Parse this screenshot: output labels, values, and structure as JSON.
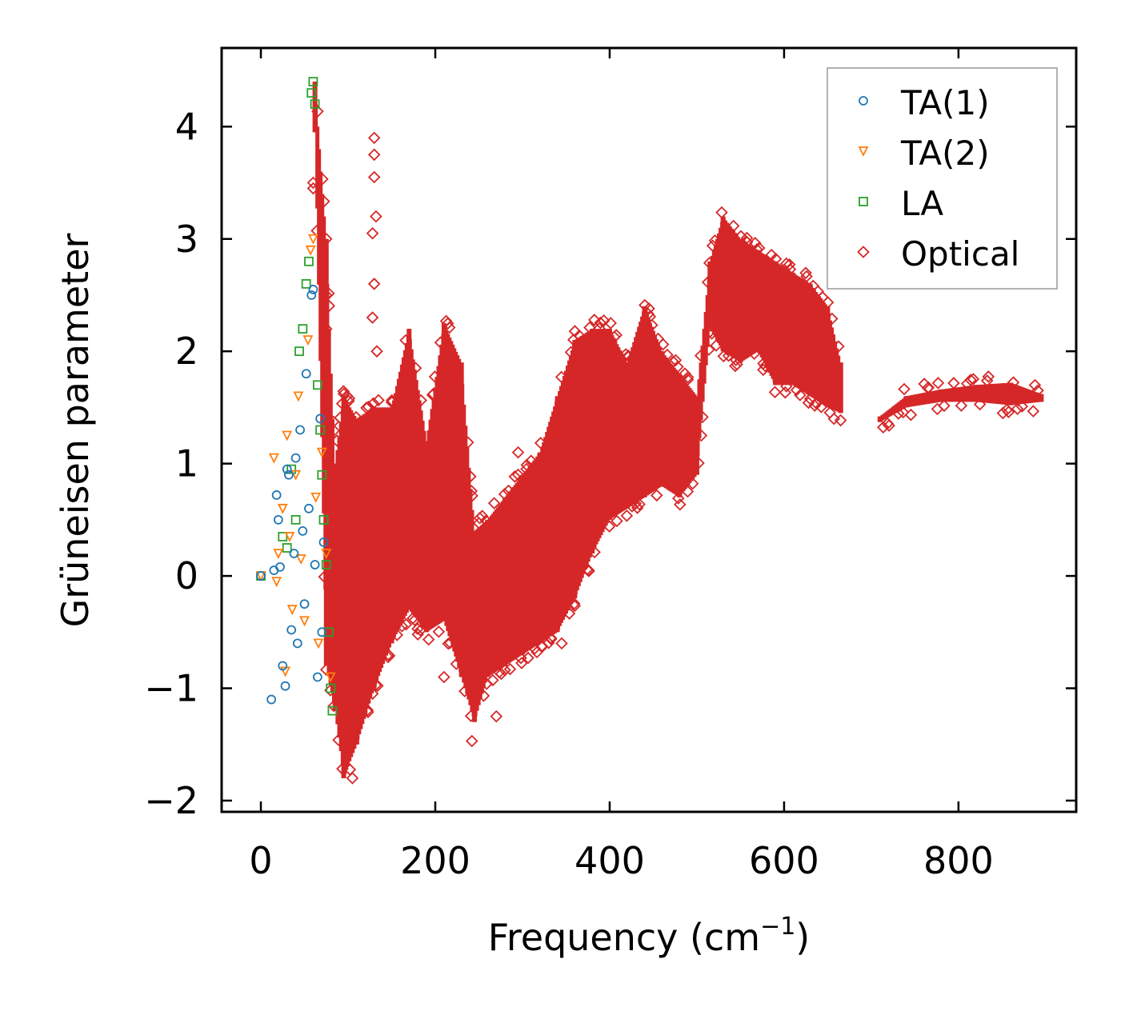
{
  "chart_data": {
    "type": "scatter",
    "title": "",
    "xlabel_main": "Frequency (cm",
    "xlabel_sup": "−1",
    "xlabel_close": ")",
    "ylabel": "Grüneisen parameter",
    "xlim": [
      -45,
      935
    ],
    "ylim": [
      -2.1,
      4.7
    ],
    "xticks": [
      0,
      200,
      400,
      600,
      800
    ],
    "yticks": [
      -2,
      -1,
      0,
      1,
      2,
      3,
      4
    ],
    "xtick_labels": [
      "0",
      "200",
      "400",
      "600",
      "800"
    ],
    "ytick_labels": [
      "−2",
      "−1",
      "0",
      "1",
      "2",
      "3",
      "4"
    ],
    "grid": false,
    "legend_position": "top-right",
    "series": [
      {
        "name": "TA(1)",
        "marker": "circle",
        "color": "#1f77b4",
        "points": [
          [
            0,
            0
          ],
          [
            12,
            -1.1
          ],
          [
            15,
            0.05
          ],
          [
            18,
            0.72
          ],
          [
            20,
            0.5
          ],
          [
            22,
            0.08
          ],
          [
            25,
            -0.8
          ],
          [
            28,
            -0.98
          ],
          [
            30,
            0.95
          ],
          [
            32,
            0.9
          ],
          [
            35,
            -0.48
          ],
          [
            38,
            0.2
          ],
          [
            40,
            1.05
          ],
          [
            42,
            -0.6
          ],
          [
            45,
            1.3
          ],
          [
            48,
            0.4
          ],
          [
            50,
            -0.25
          ],
          [
            52,
            1.8
          ],
          [
            55,
            0.6
          ],
          [
            58,
            2.5
          ],
          [
            60,
            2.55
          ],
          [
            62,
            0.1
          ],
          [
            65,
            -0.9
          ],
          [
            68,
            1.4
          ],
          [
            70,
            -0.5
          ],
          [
            72,
            0.3
          ]
        ]
      },
      {
        "name": "TA(2)",
        "marker": "triangle-down",
        "color": "#ff7f0e",
        "points": [
          [
            0,
            0
          ],
          [
            15,
            1.05
          ],
          [
            18,
            -0.05
          ],
          [
            20,
            0.2
          ],
          [
            25,
            0.6
          ],
          [
            28,
            -0.85
          ],
          [
            30,
            1.25
          ],
          [
            33,
            0.35
          ],
          [
            36,
            -0.3
          ],
          [
            40,
            0.9
          ],
          [
            43,
            1.6
          ],
          [
            46,
            0.15
          ],
          [
            50,
            -0.4
          ],
          [
            54,
            2.1
          ],
          [
            57,
            2.9
          ],
          [
            60,
            3.0
          ],
          [
            63,
            0.7
          ],
          [
            66,
            -0.6
          ],
          [
            70,
            1.1
          ],
          [
            75,
            0.2
          ],
          [
            80,
            -0.9
          ]
        ]
      },
      {
        "name": "LA",
        "marker": "square",
        "color": "#2ca02c",
        "points": [
          [
            0,
            0
          ],
          [
            25,
            0.35
          ],
          [
            30,
            0.25
          ],
          [
            35,
            0.95
          ],
          [
            40,
            0.5
          ],
          [
            44,
            2.0
          ],
          [
            48,
            2.2
          ],
          [
            52,
            2.6
          ],
          [
            55,
            2.8
          ],
          [
            58,
            4.3
          ],
          [
            60,
            4.4
          ],
          [
            62,
            4.2
          ],
          [
            65,
            1.7
          ],
          [
            68,
            1.3
          ],
          [
            70,
            0.9
          ],
          [
            72,
            0.5
          ],
          [
            75,
            0.1
          ],
          [
            78,
            -0.5
          ],
          [
            80,
            -1.0
          ],
          [
            82,
            -1.2
          ]
        ]
      },
      {
        "name": "Optical",
        "marker": "diamond",
        "color": "#d62728",
        "bands": [
          {
            "x": 62,
            "y_low": 3.95,
            "y_high": 4.4
          },
          {
            "x": 75,
            "y_low": -0.8,
            "y_high": 3.0
          },
          {
            "x": 85,
            "y_low": -1.2,
            "y_high": 1.0
          },
          {
            "x": 95,
            "y_low": -1.8,
            "y_high": 1.6
          },
          {
            "x": 110,
            "y_low": -1.5,
            "y_high": 1.4
          },
          {
            "x": 130,
            "y_low": -1.0,
            "y_high": 1.5
          },
          {
            "x": 150,
            "y_low": -0.6,
            "y_high": 1.5
          },
          {
            "x": 170,
            "y_low": -0.3,
            "y_high": 2.2
          },
          {
            "x": 190,
            "y_low": -0.5,
            "y_high": 1.2
          },
          {
            "x": 210,
            "y_low": -0.4,
            "y_high": 2.25
          },
          {
            "x": 230,
            "y_low": -0.9,
            "y_high": 1.9
          },
          {
            "x": 245,
            "y_low": -1.3,
            "y_high": 0.4
          },
          {
            "x": 260,
            "y_low": -0.9,
            "y_high": 0.5
          },
          {
            "x": 280,
            "y_low": -0.8,
            "y_high": 0.7
          },
          {
            "x": 300,
            "y_low": -0.7,
            "y_high": 0.9
          },
          {
            "x": 320,
            "y_low": -0.6,
            "y_high": 1.1
          },
          {
            "x": 340,
            "y_low": -0.5,
            "y_high": 1.6
          },
          {
            "x": 360,
            "y_low": -0.2,
            "y_high": 2.1
          },
          {
            "x": 380,
            "y_low": 0.2,
            "y_high": 2.2
          },
          {
            "x": 400,
            "y_low": 0.5,
            "y_high": 2.2
          },
          {
            "x": 420,
            "y_low": 0.6,
            "y_high": 1.9
          },
          {
            "x": 440,
            "y_low": 0.7,
            "y_high": 2.4
          },
          {
            "x": 460,
            "y_low": 0.8,
            "y_high": 2.0
          },
          {
            "x": 480,
            "y_low": 0.7,
            "y_high": 1.8
          },
          {
            "x": 500,
            "y_low": 0.9,
            "y_high": 1.6
          },
          {
            "x": 515,
            "y_low": 2.2,
            "y_high": 2.8
          },
          {
            "x": 530,
            "y_low": 2.0,
            "y_high": 3.2
          },
          {
            "x": 550,
            "y_low": 1.9,
            "y_high": 3.0
          },
          {
            "x": 570,
            "y_low": 2.0,
            "y_high": 2.9
          },
          {
            "x": 590,
            "y_low": 1.7,
            "y_high": 2.8
          },
          {
            "x": 610,
            "y_low": 1.7,
            "y_high": 2.7
          },
          {
            "x": 630,
            "y_low": 1.6,
            "y_high": 2.6
          },
          {
            "x": 650,
            "y_low": 1.5,
            "y_high": 2.4
          },
          {
            "x": 665,
            "y_low": 1.45,
            "y_high": 1.9
          },
          {
            "x": 710,
            "y_low": 1.37,
            "y_high": 1.42
          },
          {
            "x": 740,
            "y_low": 1.5,
            "y_high": 1.6
          },
          {
            "x": 780,
            "y_low": 1.55,
            "y_high": 1.66
          },
          {
            "x": 820,
            "y_low": 1.55,
            "y_high": 1.7
          },
          {
            "x": 860,
            "y_low": 1.52,
            "y_high": 1.72
          },
          {
            "x": 895,
            "y_low": 1.55,
            "y_high": 1.62
          }
        ],
        "outliers": [
          [
            130,
            3.9
          ],
          [
            130,
            3.75
          ],
          [
            130,
            3.55
          ],
          [
            132,
            3.2
          ],
          [
            128,
            3.05
          ],
          [
            130,
            2.6
          ],
          [
            128,
            2.3
          ],
          [
            133,
            2.0
          ],
          [
            60,
            3.5
          ],
          [
            60,
            3.45
          ],
          [
            75,
            3.0
          ],
          [
            75,
            2.5
          ],
          [
            75,
            2.2
          ],
          [
            100,
            -1.5
          ],
          [
            105,
            -1.8
          ],
          [
            180,
            -0.52
          ],
          [
            210,
            -0.9
          ],
          [
            242,
            -1.47
          ],
          [
            270,
            -1.25
          ],
          [
            295,
            1.1
          ],
          [
            345,
            -0.6
          ],
          [
            445,
            2.38
          ],
          [
            505,
            1.25
          ]
        ]
      }
    ]
  },
  "legend": {
    "items": [
      {
        "label": "TA(1)",
        "marker": "circle",
        "color": "#1f77b4"
      },
      {
        "label": "TA(2)",
        "marker": "triangle-down",
        "color": "#ff7f0e"
      },
      {
        "label": "LA",
        "marker": "square",
        "color": "#2ca02c"
      },
      {
        "label": "Optical",
        "marker": "diamond",
        "color": "#d62728"
      }
    ]
  }
}
